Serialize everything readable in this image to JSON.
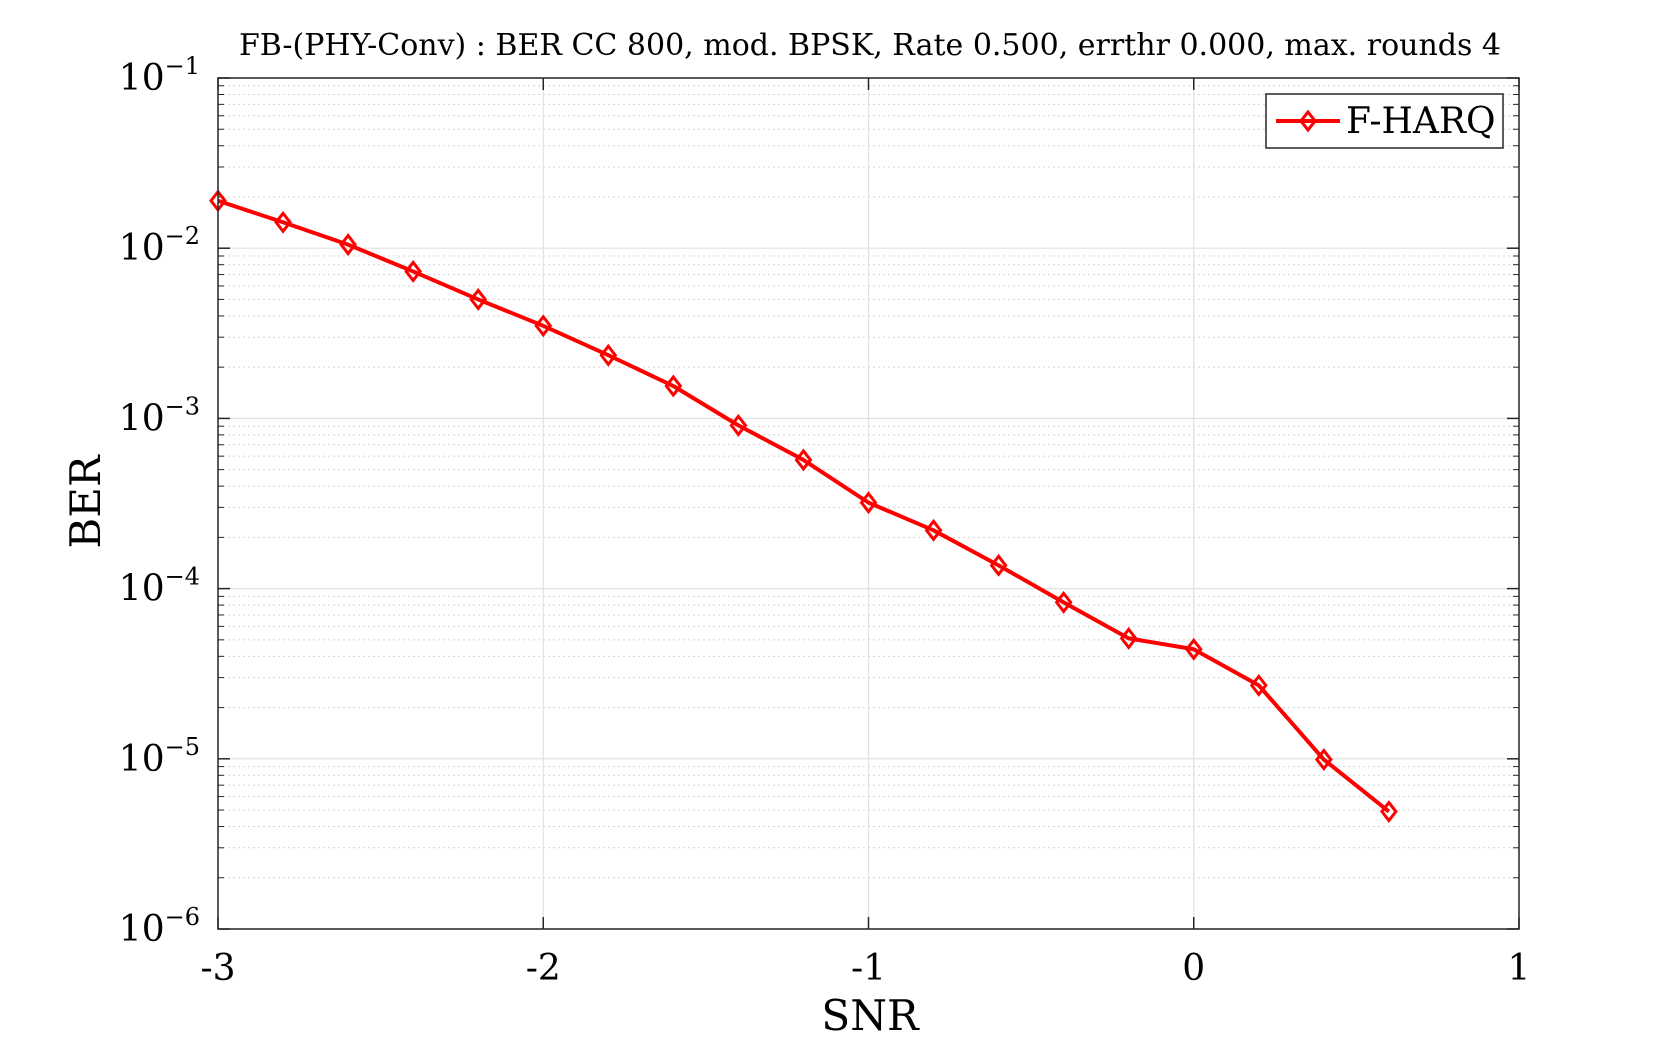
{
  "chart_data": {
    "type": "line",
    "title": "FB-(PHY-Conv) : BER CC 800, mod. BPSK, Rate 0.500, errthr 0.000, max. rounds 4",
    "xlabel": "SNR",
    "ylabel": "BER",
    "xlim": [
      -3,
      1
    ],
    "ylim": [
      1e-06,
      0.1
    ],
    "yscale": "log",
    "grid": true,
    "minor_grid": true,
    "legend_position": "top-right",
    "x_ticks": [
      {
        "value": -3,
        "label": "-3"
      },
      {
        "value": -2,
        "label": "-2"
      },
      {
        "value": -1,
        "label": "-1"
      },
      {
        "value": 0,
        "label": "0"
      },
      {
        "value": 1,
        "label": "1"
      }
    ],
    "y_ticks": [
      {
        "value": 0.1,
        "base": "10",
        "exp": "−1"
      },
      {
        "value": 0.01,
        "base": "10",
        "exp": "−2"
      },
      {
        "value": 0.001,
        "base": "10",
        "exp": "−3"
      },
      {
        "value": 0.0001,
        "base": "10",
        "exp": "−4"
      },
      {
        "value": 1e-05,
        "base": "10",
        "exp": "−5"
      },
      {
        "value": 1e-06,
        "base": "10",
        "exp": "−6"
      }
    ],
    "series": [
      {
        "name": "F-HARQ",
        "color": "#ff0000",
        "marker": "diamond",
        "x": [
          -3.0,
          -2.8,
          -2.6,
          -2.4,
          -2.2,
          -2.0,
          -1.8,
          -1.6,
          -1.4,
          -1.2,
          -1.0,
          -0.8,
          -0.6,
          -0.4,
          -0.2,
          0.0,
          0.2,
          0.4,
          0.6
        ],
        "y": [
          0.019,
          0.0142,
          0.0105,
          0.0073,
          0.005,
          0.0035,
          0.00235,
          0.00155,
          0.00091,
          0.00057,
          0.00032,
          0.00022,
          0.000137,
          8.3e-05,
          5.1e-05,
          4.4e-05,
          2.7e-05,
          9.9e-06,
          4.9e-06
        ]
      }
    ]
  }
}
